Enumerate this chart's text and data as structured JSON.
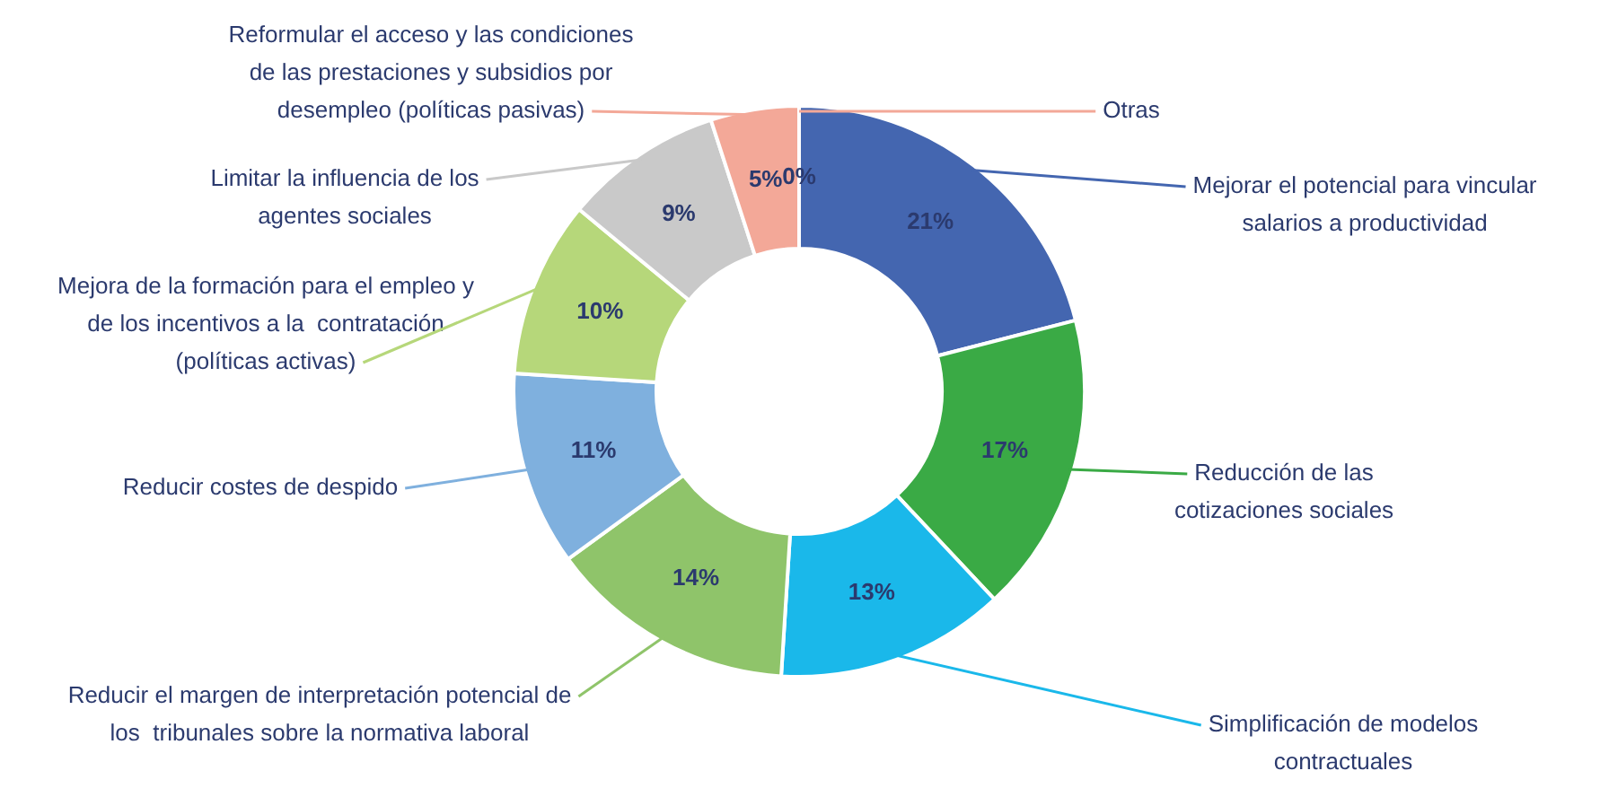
{
  "chart_data": {
    "type": "donut",
    "categories": [
      "Mejorar el potencial para vincular salarios a productividad",
      "Reducción de las cotizaciones sociales",
      "Simplificación de modelos contractuales",
      "Reducir el margen de interpretación potencial de los  tribunales sobre la normativa laboral",
      "Reducir costes de despido",
      "Mejora de la formación para el empleo y de los incentivos a la  contratación (políticas activas)",
      "Limitar la influencia de los agentes sociales",
      "Reformular el acceso y las condiciones de las prestaciones y subsidios por desempleo (políticas pasivas)",
      "Otras"
    ],
    "values": [
      21,
      17,
      13,
      14,
      11,
      10,
      9,
      5,
      0
    ],
    "colors": [
      "#4466b0",
      "#3aaa45",
      "#1ab8ea",
      "#8fc46a",
      "#7fb0de",
      "#b6d77a",
      "#c9c9c9",
      "#f3a898",
      "#f3a898"
    ],
    "value_labels": [
      "21%",
      "17%",
      "13%",
      "14%",
      "11%",
      "10%",
      "9%",
      "5%",
      "0%"
    ],
    "legend": false
  }
}
